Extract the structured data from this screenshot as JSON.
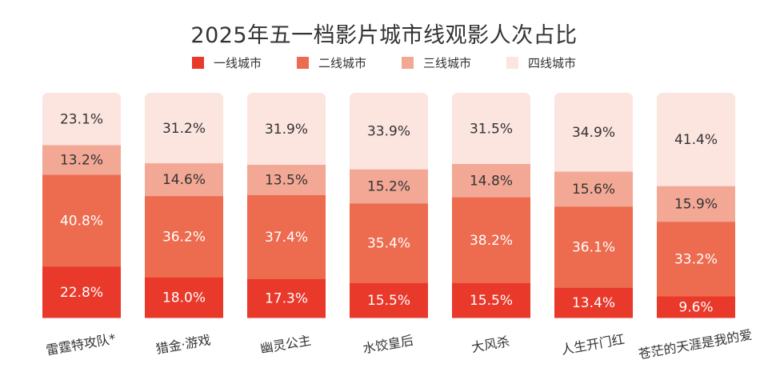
{
  "chart_data": {
    "type": "bar",
    "stacked": true,
    "normalized": true,
    "title": "2025年五一档影片城市线观影人次占比",
    "categories": [
      "雷霆特攻队*",
      "猎金·游戏",
      "幽灵公主",
      "水饺皇后",
      "大风杀",
      "人生开门红",
      "苍茫的天涯是我的爱"
    ],
    "series": [
      {
        "name": "一线城市",
        "color": "#E8392B",
        "values": [
          22.8,
          18.0,
          17.3,
          15.5,
          15.5,
          13.4,
          9.6
        ]
      },
      {
        "name": "二线城市",
        "color": "#ED6B4F",
        "values": [
          40.8,
          36.2,
          37.4,
          35.4,
          38.2,
          36.1,
          33.2
        ]
      },
      {
        "name": "三线城市",
        "color": "#F2A895",
        "values": [
          13.2,
          14.6,
          13.5,
          15.2,
          14.8,
          15.6,
          15.9
        ]
      },
      {
        "name": "四线城市",
        "color": "#FCE4DF",
        "values": [
          23.1,
          31.2,
          31.9,
          33.9,
          31.5,
          34.9,
          41.4
        ]
      }
    ],
    "labels": [
      [
        "22.8%",
        "18.0%",
        "17.3%",
        "15.5%",
        "15.5%",
        "13.4%",
        "9.6%"
      ],
      [
        "40.8%",
        "36.2%",
        "37.4%",
        "35.4%",
        "38.2%",
        "36.1%",
        "33.2%"
      ],
      [
        "13.2%",
        "14.6%",
        "13.5%",
        "15.2%",
        "14.8%",
        "15.6%",
        "15.9%"
      ],
      [
        "23.1%",
        "31.2%",
        "31.9%",
        "33.9%",
        "31.5%",
        "34.9%",
        "41.4%"
      ]
    ],
    "ylim": [
      0,
      100
    ],
    "legend_position": "top",
    "grid": false,
    "xlabel": "",
    "ylabel": ""
  }
}
